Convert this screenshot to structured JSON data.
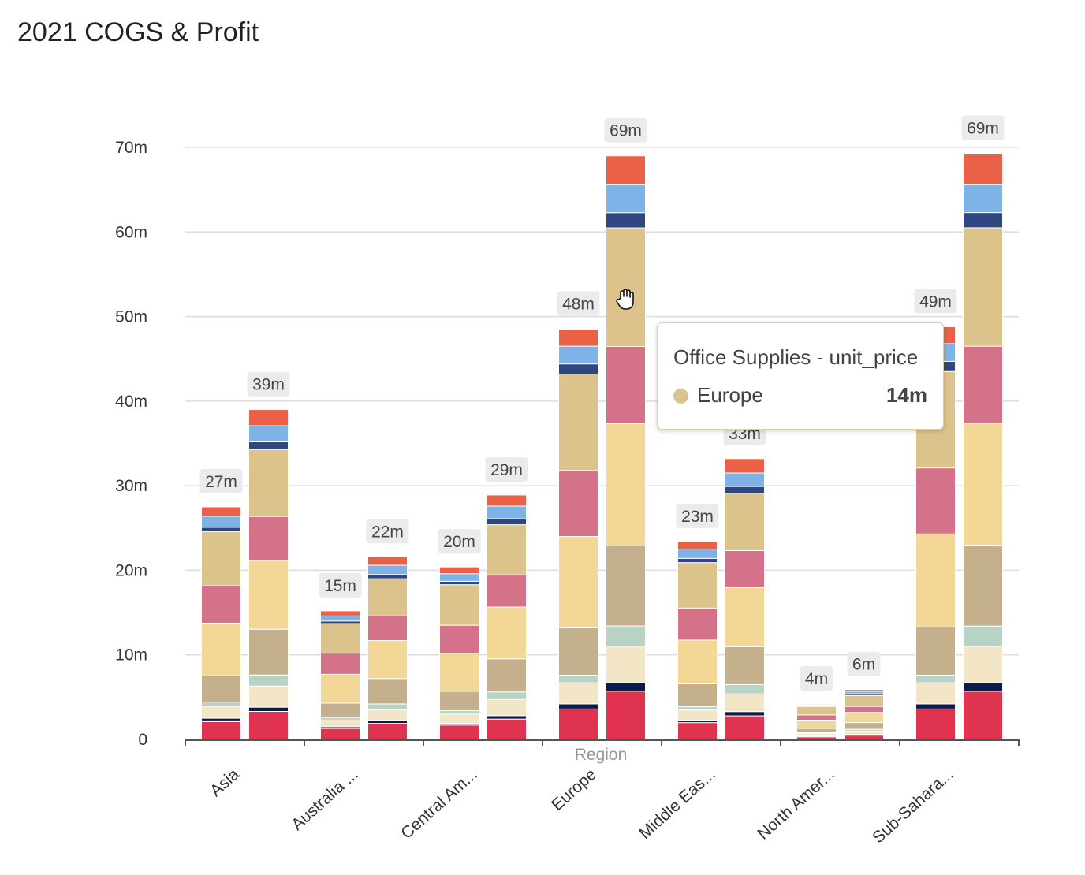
{
  "title": "2021 COGS & Profit",
  "chart_data": {
    "type": "bar",
    "stacked": true,
    "title": "2021 COGS & Profit",
    "xlabel": "Region",
    "ylabel": "",
    "ylim": [
      0,
      70000000
    ],
    "yticks": [
      0,
      10000000,
      20000000,
      30000000,
      40000000,
      50000000,
      60000000,
      70000000
    ],
    "ytick_labels": [
      "0",
      "10m",
      "20m",
      "30m",
      "40m",
      "50m",
      "60m",
      "70m"
    ],
    "grid": true,
    "categories": [
      "Asia",
      "Australia ...",
      "Central Am...",
      "Europe",
      "Middle Eas...",
      "North Amer...",
      "Sub-Sahara..."
    ],
    "segment_colors": [
      "#e0334f",
      "#0d1b4c",
      "#f3e6c6",
      "#b7d3c6",
      "#c4b08d",
      "#f2d797",
      "#d47289",
      "#dcc38c",
      "#2f4680",
      "#7fb3e8",
      "#ea6148"
    ],
    "groups": [
      {
        "category": "Asia",
        "bars": [
          {
            "total": 27500000,
            "label": "27m",
            "segments": [
              2100000,
              400000,
              1400000,
              500000,
              3100000,
              6200000,
              4400000,
              6400000,
              500000,
              1300000,
              1100000
            ]
          },
          {
            "total": 39000000,
            "label": "39m",
            "segments": [
              3300000,
              500000,
              2500000,
              1300000,
              5400000,
              8100000,
              5200000,
              7900000,
              900000,
              1900000,
              1900000
            ]
          }
        ]
      },
      {
        "category": "Australia ...",
        "bars": [
          {
            "total": 15200000,
            "label": "15m",
            "segments": [
              1300000,
              200000,
              800000,
              300000,
              1700000,
              3400000,
              2500000,
              3500000,
              300000,
              600000,
              600000
            ]
          },
          {
            "total": 21600000,
            "label": "22m",
            "segments": [
              1900000,
              300000,
              1300000,
              700000,
              3000000,
              4500000,
              2900000,
              4400000,
              500000,
              1100000,
              1000000
            ]
          }
        ]
      },
      {
        "category": "Central Am...",
        "bars": [
          {
            "total": 20400000,
            "label": "20m",
            "segments": [
              1700000,
              200000,
              1100000,
              400000,
              2300000,
              4500000,
              3300000,
              4800000,
              400000,
              900000,
              800000
            ]
          },
          {
            "total": 28900000,
            "label": "29m",
            "segments": [
              2400000,
              400000,
              1900000,
              900000,
              3900000,
              6100000,
              3800000,
              5900000,
              700000,
              1500000,
              1300000
            ]
          }
        ]
      },
      {
        "category": "Europe",
        "bars": [
          {
            "total": 48500000,
            "label": "48m",
            "segments": [
              3600000,
              600000,
              2500000,
              900000,
              5600000,
              10800000,
              7800000,
              11400000,
              1200000,
              2100000,
              2000000
            ]
          },
          {
            "total": 69000000,
            "label": "69m",
            "segments": [
              5700000,
              1000000,
              4300000,
              2400000,
              9500000,
              14400000,
              9100000,
              14000000,
              1800000,
              3300000,
              3400000
            ]
          }
        ]
      },
      {
        "category": "Middle Eas...",
        "bars": [
          {
            "total": 23400000,
            "label": "23m",
            "segments": [
              2000000,
              200000,
              1300000,
              400000,
              2700000,
              5200000,
              3800000,
              5400000,
              500000,
              1100000,
              900000
            ]
          },
          {
            "total": 33200000,
            "label": "33m",
            "segments": [
              2800000,
              500000,
              2100000,
              1100000,
              4500000,
              7000000,
              4400000,
              6800000,
              800000,
              1600000,
              1700000
            ]
          }
        ]
      },
      {
        "category": "North Amer...",
        "bars": [
          {
            "total": 4200000,
            "label": "4m",
            "segments": [
              300000,
              100000,
              300000,
              100000,
              500000,
              900000,
              700000,
              1000000,
              100000,
              100000,
              100000
            ]
          },
          {
            "total": 5900000,
            "label": "6m",
            "segments": [
              500000,
              100000,
              400000,
              200000,
              800000,
              1200000,
              700000,
              1300000,
              200000,
              300000,
              200000
            ]
          }
        ]
      },
      {
        "category": "Sub-Sahara...",
        "bars": [
          {
            "total": 48800000,
            "label": "49m",
            "segments": [
              3600000,
              600000,
              2500000,
              900000,
              5700000,
              11000000,
              7800000,
              11400000,
              1200000,
              2100000,
              2000000
            ]
          },
          {
            "total": 69300000,
            "label": "69m",
            "segments": [
              5700000,
              1000000,
              4300000,
              2400000,
              9500000,
              14500000,
              9100000,
              14000000,
              1800000,
              3300000,
              3700000
            ]
          }
        ]
      }
    ]
  },
  "tooltip": {
    "title": "Office Supplies - unit_price",
    "series": "Europe",
    "value": "14m",
    "dot_color": "#dcc38c"
  },
  "cursor_icon": "grab-hand-icon"
}
